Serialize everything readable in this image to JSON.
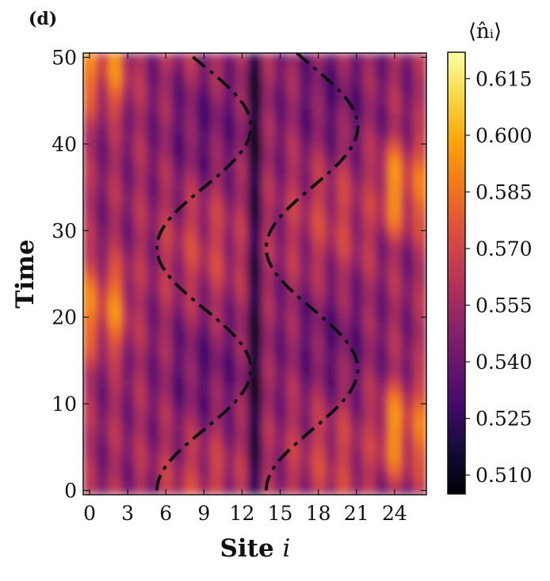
{
  "panel_label": "(d)",
  "colorbar": {
    "title": "⟨n̂ᵢ⟩",
    "colormap": "inferno",
    "range": [
      0.505,
      0.622
    ],
    "ticks": [
      0.51,
      0.525,
      0.54,
      0.555,
      0.57,
      0.585,
      0.6,
      0.615
    ],
    "tick_labels": [
      "0.510",
      "0.525",
      "0.540",
      "0.555",
      "0.570",
      "0.585",
      "0.600",
      "0.615"
    ]
  },
  "chart_data": {
    "type": "heatmap",
    "title": "",
    "xlabel": "Site i",
    "xlabel_main": "Site ",
    "xlabel_var": "i",
    "ylabel": "Time",
    "xlim": [
      -0.5,
      26.5
    ],
    "ylim": [
      -0.5,
      50.5
    ],
    "x_ticks": [
      0,
      3,
      6,
      9,
      12,
      15,
      18,
      21,
      24
    ],
    "x_tick_labels": [
      "0",
      "3",
      "6",
      "9",
      "12",
      "15",
      "18",
      "21",
      "24"
    ],
    "y_ticks": [
      0,
      10,
      20,
      30,
      40,
      50
    ],
    "y_tick_labels": [
      "0",
      "10",
      "20",
      "30",
      "40",
      "50"
    ],
    "value_name": "⟨n̂ᵢ⟩",
    "value_range": [
      0.505,
      0.622
    ],
    "overlay_curves": [
      {
        "name": "trajectory-left",
        "style": "dashed black",
        "x_min": 5.3,
        "x_max": 12.7,
        "period": 28,
        "t_min_x": 0
      },
      {
        "name": "trajectory-right",
        "style": "dashed black",
        "x_min": 13.9,
        "x_max": 21.1,
        "period": 28,
        "t_min_x": 0
      }
    ]
  }
}
